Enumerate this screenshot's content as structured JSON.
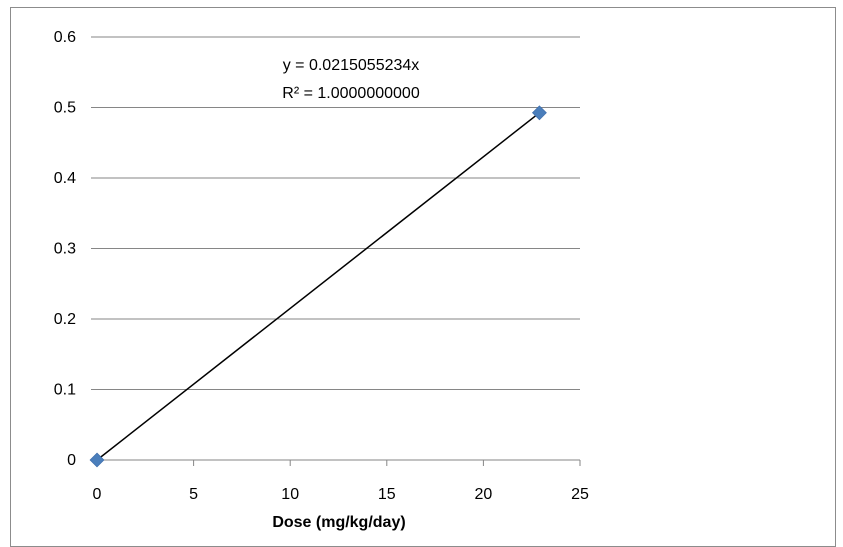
{
  "chart_data": {
    "type": "scatter",
    "title": "",
    "xlabel": "Dose (mg/kg/day)",
    "ylabel": "",
    "xlim": [
      0,
      25
    ],
    "ylim": [
      0,
      0.6
    ],
    "x_ticks": [
      0,
      5,
      10,
      15,
      20,
      25
    ],
    "x_tick_labels": [
      "0",
      "5",
      "10",
      "15",
      "20",
      "25"
    ],
    "y_ticks": [
      0,
      0.1,
      0.2,
      0.3,
      0.4,
      0.5,
      0.6
    ],
    "y_tick_labels": [
      "0",
      "0.1",
      "0.2",
      "0.3",
      "0.4",
      "0.5",
      "0.6"
    ],
    "grid": "horizontal",
    "legend": "none",
    "series": [
      {
        "points": [
          {
            "x": 0,
            "y": 0
          },
          {
            "x": 22.9,
            "y": 0.4925
          }
        ],
        "marker": "diamond",
        "color": "#4a7ebb"
      }
    ],
    "trendline": {
      "slope": 0.0215055234,
      "intercept": 0,
      "color": "#000000",
      "equation": "y = 0.0215055234x",
      "r_squared": "R² = 1.0000000000"
    }
  }
}
